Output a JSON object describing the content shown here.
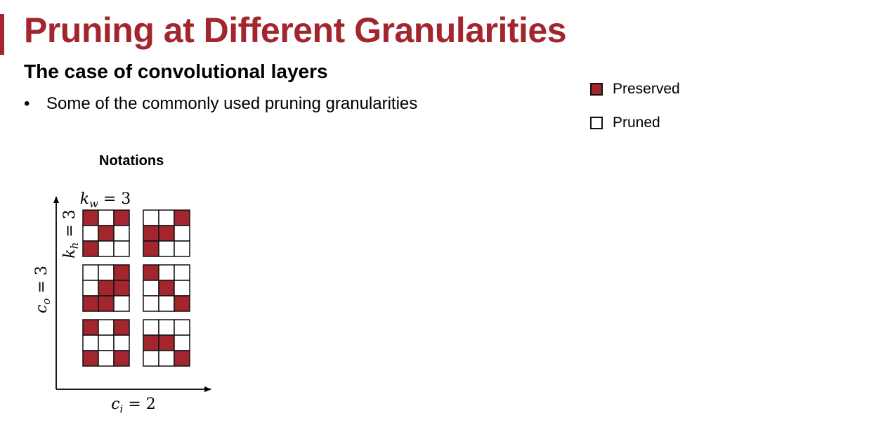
{
  "slide": {
    "title": "Pruning at Different Granularities",
    "subtitle": "The case of convolutional layers",
    "bullets": [
      "Some of the commonly used pruning granularities"
    ]
  },
  "legend": {
    "preserved_label": "Preserved",
    "pruned_label": "Pruned"
  },
  "notations": {
    "heading": "Notations",
    "kw_label": "k_w = 3",
    "kh_label": "k_h = 3",
    "co_label": "c_o = 3",
    "ci_label": "c_i = 2",
    "kernels": [
      [
        [
          [
            1,
            0,
            1
          ],
          [
            0,
            1,
            0
          ],
          [
            1,
            0,
            0
          ]
        ],
        [
          [
            0,
            0,
            1
          ],
          [
            1,
            1,
            0
          ],
          [
            1,
            0,
            0
          ]
        ]
      ],
      [
        [
          [
            0,
            0,
            1
          ],
          [
            0,
            1,
            1
          ],
          [
            1,
            1,
            0
          ]
        ],
        [
          [
            1,
            0,
            0
          ],
          [
            0,
            1,
            0
          ],
          [
            0,
            0,
            1
          ]
        ]
      ],
      [
        [
          [
            1,
            0,
            1
          ],
          [
            0,
            0,
            0
          ],
          [
            1,
            0,
            1
          ]
        ],
        [
          [
            0,
            0,
            0
          ],
          [
            1,
            1,
            0
          ],
          [
            0,
            0,
            1
          ]
        ]
      ]
    ]
  },
  "colors": {
    "accent": "#a3262f",
    "preserved": "#a3262f",
    "pruned": "#ffffff",
    "grid_line": "#111111"
  }
}
